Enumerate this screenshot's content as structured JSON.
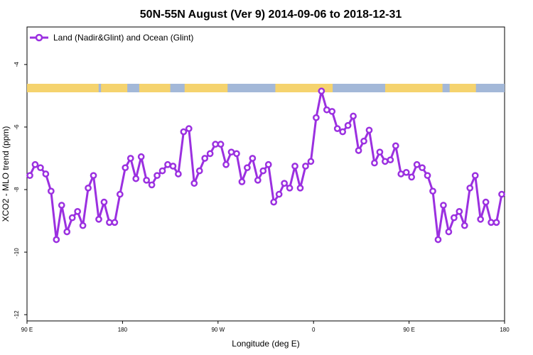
{
  "chart_data": {
    "type": "line",
    "title": "50N-55N August (Ver 9)   2014-09-06 to 2018-12-31",
    "xlabel": "Longitude (deg E)",
    "ylabel": "XCO2 - MLO trend (ppm)",
    "x_tick_labels": [
      "90 E",
      "180",
      "90 W",
      "0",
      "90 E",
      "180"
    ],
    "y_ticks": [
      -4,
      -6,
      -8,
      -10,
      -12
    ],
    "ylim": [
      -12.2,
      -2.8
    ],
    "grid": false,
    "legend_position": "top-left",
    "colors": {
      "series": "#9b30e0",
      "land_band": "#f5d36e",
      "ocean_band": "#a3b8d8"
    },
    "series": [
      {
        "name": "Land (Nadir&Glint) and Ocean (Glint)",
        "values": [
          -7.55,
          -7.2,
          -7.3,
          -7.5,
          -8.05,
          -9.6,
          -8.5,
          -9.35,
          -8.9,
          -8.7,
          -9.15,
          -7.95,
          -7.55,
          -8.95,
          -8.4,
          -9.05,
          -9.05,
          -8.15,
          -7.3,
          -7.0,
          -7.65,
          -6.95,
          -7.7,
          -7.85,
          -7.55,
          -7.4,
          -7.2,
          -7.25,
          -7.5,
          -6.15,
          -6.05,
          -7.8,
          -7.4,
          -7.0,
          -6.85,
          -6.55,
          -6.55,
          -7.2,
          -6.8,
          -6.85,
          -7.75,
          -7.3,
          -7.0,
          -7.7,
          -7.4,
          -7.2,
          -8.4,
          -8.15,
          -7.8,
          -7.95,
          -7.25,
          -7.95,
          -7.25,
          -7.1,
          -5.7,
          -4.85,
          -5.45,
          -5.5,
          -6.05,
          -6.15,
          -5.95,
          -5.65,
          -6.75,
          -6.45,
          -6.1,
          -7.15,
          -6.8,
          -7.1,
          -7.05,
          -6.6,
          -7.5,
          -7.45,
          -7.6,
          -7.2,
          -7.3,
          -7.55,
          -8.05,
          -9.6,
          -8.5,
          -9.35,
          -8.9,
          -8.7,
          -9.15,
          -7.95,
          -7.55,
          -8.95,
          -8.4,
          -9.05,
          -9.05,
          -8.15
        ]
      }
    ]
  }
}
